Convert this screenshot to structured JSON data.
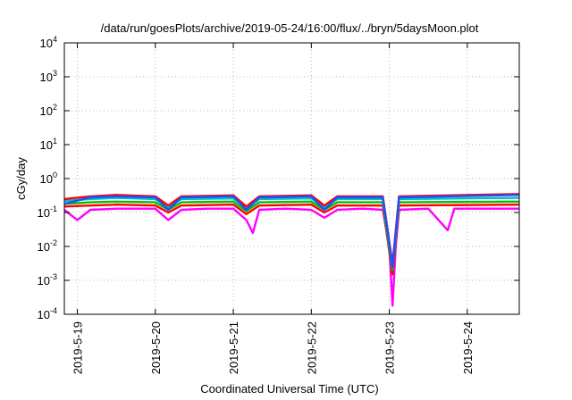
{
  "chart_data": {
    "type": "line",
    "title": "/data/run/goesPlots/archive/2019-05-24/16:00/flux/../bryn/5daysMoon.plot",
    "xlabel": "Coordinated Universal Time (UTC)",
    "ylabel": "cGy/day",
    "x_ticks": [
      "2019-5-19",
      "2019-5-20",
      "2019-5-21",
      "2019-5-22",
      "2019-5-23",
      "2019-5-24"
    ],
    "y_ticks": [
      {
        "mant": "10",
        "exp": "-4",
        "value": 0.0001
      },
      {
        "mant": "10",
        "exp": "-3",
        "value": 0.001
      },
      {
        "mant": "10",
        "exp": "-2",
        "value": 0.01
      },
      {
        "mant": "10",
        "exp": "-1",
        "value": 0.1
      },
      {
        "mant": "10",
        "exp": "0",
        "value": 1
      },
      {
        "mant": "10",
        "exp": "1",
        "value": 10
      },
      {
        "mant": "10",
        "exp": "2",
        "value": 100
      },
      {
        "mant": "10",
        "exp": "3",
        "value": 1000
      },
      {
        "mant": "10",
        "exp": "4",
        "value": 10000
      }
    ],
    "y_scale": "log",
    "ylim": [
      0.0001,
      10000
    ],
    "xlim": [
      "2019-05-18T20:00",
      "2019-05-24T16:00"
    ],
    "grid": true,
    "series": [
      {
        "color": "#ff00ff",
        "points": [
          [
            "2019-05-18T20:00",
            0.12
          ],
          [
            "2019-05-19T00:00",
            0.06
          ],
          [
            "2019-05-19T04:00",
            0.12
          ],
          [
            "2019-05-19T12:00",
            0.13
          ],
          [
            "2019-05-20T00:00",
            0.13
          ],
          [
            "2019-05-20T04:00",
            0.06
          ],
          [
            "2019-05-20T08:00",
            0.12
          ],
          [
            "2019-05-20T16:00",
            0.13
          ],
          [
            "2019-05-21T00:00",
            0.13
          ],
          [
            "2019-05-21T04:00",
            0.06
          ],
          [
            "2019-05-21T06:00",
            0.025
          ],
          [
            "2019-05-21T08:00",
            0.12
          ],
          [
            "2019-05-21T16:00",
            0.13
          ],
          [
            "2019-05-22T00:00",
            0.12
          ],
          [
            "2019-05-22T04:00",
            0.07
          ],
          [
            "2019-05-22T08:00",
            0.12
          ],
          [
            "2019-05-22T16:00",
            0.13
          ],
          [
            "2019-05-22T22:00",
            0.12
          ],
          [
            "2019-05-23T00:00",
            0.01
          ],
          [
            "2019-05-23T01:00",
            0.00018
          ],
          [
            "2019-05-23T02:00",
            0.01
          ],
          [
            "2019-05-23T03:00",
            0.12
          ],
          [
            "2019-05-23T12:00",
            0.13
          ],
          [
            "2019-05-23T18:00",
            0.03
          ],
          [
            "2019-05-23T20:00",
            0.13
          ],
          [
            "2019-05-24T12:00",
            0.13
          ],
          [
            "2019-05-24T16:00",
            0.13
          ]
        ]
      },
      {
        "color": "#ff0000",
        "points": [
          [
            "2019-05-18T20:00",
            0.15
          ],
          [
            "2019-05-19T04:00",
            0.16
          ],
          [
            "2019-05-19T12:00",
            0.17
          ],
          [
            "2019-05-20T00:00",
            0.16
          ],
          [
            "2019-05-20T04:00",
            0.1
          ],
          [
            "2019-05-20T08:00",
            0.16
          ],
          [
            "2019-05-21T00:00",
            0.17
          ],
          [
            "2019-05-21T04:00",
            0.09
          ],
          [
            "2019-05-21T08:00",
            0.16
          ],
          [
            "2019-05-22T00:00",
            0.17
          ],
          [
            "2019-05-22T04:00",
            0.1
          ],
          [
            "2019-05-22T08:00",
            0.16
          ],
          [
            "2019-05-22T22:00",
            0.16
          ],
          [
            "2019-05-23T01:00",
            0.0015
          ],
          [
            "2019-05-23T03:00",
            0.16
          ],
          [
            "2019-05-24T16:00",
            0.17
          ]
        ]
      },
      {
        "color": "#00c000",
        "points": [
          [
            "2019-05-18T20:00",
            0.18
          ],
          [
            "2019-05-19T04:00",
            0.2
          ],
          [
            "2019-05-19T12:00",
            0.21
          ],
          [
            "2019-05-20T00:00",
            0.2
          ],
          [
            "2019-05-20T04:00",
            0.12
          ],
          [
            "2019-05-20T08:00",
            0.2
          ],
          [
            "2019-05-21T00:00",
            0.21
          ],
          [
            "2019-05-21T04:00",
            0.11
          ],
          [
            "2019-05-21T08:00",
            0.2
          ],
          [
            "2019-05-22T00:00",
            0.21
          ],
          [
            "2019-05-22T04:00",
            0.12
          ],
          [
            "2019-05-22T08:00",
            0.2
          ],
          [
            "2019-05-22T22:00",
            0.2
          ],
          [
            "2019-05-23T01:00",
            0.002
          ],
          [
            "2019-05-23T03:00",
            0.2
          ],
          [
            "2019-05-24T16:00",
            0.21
          ]
        ]
      },
      {
        "color": "#00c0c0",
        "points": [
          [
            "2019-05-18T20:00",
            0.22
          ],
          [
            "2019-05-19T04:00",
            0.25
          ],
          [
            "2019-05-19T12:00",
            0.27
          ],
          [
            "2019-05-20T00:00",
            0.25
          ],
          [
            "2019-05-20T04:00",
            0.14
          ],
          [
            "2019-05-20T08:00",
            0.25
          ],
          [
            "2019-05-21T00:00",
            0.26
          ],
          [
            "2019-05-21T04:00",
            0.13
          ],
          [
            "2019-05-21T08:00",
            0.25
          ],
          [
            "2019-05-22T00:00",
            0.26
          ],
          [
            "2019-05-22T04:00",
            0.14
          ],
          [
            "2019-05-22T08:00",
            0.25
          ],
          [
            "2019-05-22T22:00",
            0.25
          ],
          [
            "2019-05-23T01:00",
            0.0025
          ],
          [
            "2019-05-23T03:00",
            0.25
          ],
          [
            "2019-05-24T16:00",
            0.27
          ]
        ]
      },
      {
        "color": "#ff0000",
        "points": [
          [
            "2019-05-18T20:00",
            0.25
          ],
          [
            "2019-05-19T04:00",
            0.3
          ],
          [
            "2019-05-19T12:00",
            0.33
          ],
          [
            "2019-05-20T00:00",
            0.3
          ],
          [
            "2019-05-20T04:00",
            0.16
          ],
          [
            "2019-05-20T08:00",
            0.3
          ],
          [
            "2019-05-21T00:00",
            0.32
          ],
          [
            "2019-05-21T04:00",
            0.15
          ],
          [
            "2019-05-21T08:00",
            0.3
          ],
          [
            "2019-05-22T00:00",
            0.32
          ],
          [
            "2019-05-22T04:00",
            0.16
          ],
          [
            "2019-05-22T08:00",
            0.3
          ],
          [
            "2019-05-22T22:00",
            0.3
          ],
          [
            "2019-05-23T01:00",
            0.003
          ],
          [
            "2019-05-23T03:00",
            0.3
          ],
          [
            "2019-05-24T16:00",
            0.35
          ]
        ]
      },
      {
        "color": "#1e50ff",
        "points": [
          [
            "2019-05-18T20:00",
            0.18
          ],
          [
            "2019-05-19T04:00",
            0.28
          ],
          [
            "2019-05-19T12:00",
            0.3
          ],
          [
            "2019-05-20T00:00",
            0.28
          ],
          [
            "2019-05-20T04:00",
            0.12
          ],
          [
            "2019-05-20T08:00",
            0.28
          ],
          [
            "2019-05-21T00:00",
            0.3
          ],
          [
            "2019-05-21T04:00",
            0.12
          ],
          [
            "2019-05-21T08:00",
            0.28
          ],
          [
            "2019-05-22T00:00",
            0.3
          ],
          [
            "2019-05-22T04:00",
            0.12
          ],
          [
            "2019-05-22T08:00",
            0.28
          ],
          [
            "2019-05-22T22:00",
            0.28
          ],
          [
            "2019-05-23T01:00",
            0.0025
          ],
          [
            "2019-05-23T03:00",
            0.28
          ],
          [
            "2019-05-24T16:00",
            0.33
          ]
        ]
      }
    ]
  }
}
